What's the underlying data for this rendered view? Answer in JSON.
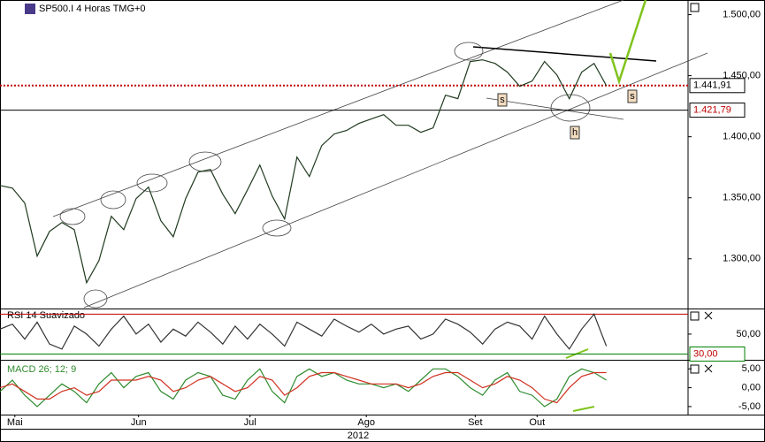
{
  "chart_data": [
    {
      "type": "line",
      "title": "SP500.I 4 Horas TMG+0",
      "color": "#1f3a1f",
      "values": [
        1360.1,
        1357.9,
        1345.6,
        1302.2,
        1322.4,
        1329.7,
        1323.9,
        1280.4,
        1298.5,
        1334.8,
        1323.9,
        1349.3,
        1358.7,
        1331.2,
        1318.1,
        1349.3,
        1371.0,
        1373.2,
        1352.9,
        1337.0,
        1356.5,
        1376.8,
        1351.4,
        1332.6,
        1383.3,
        1367.4,
        1392.7,
        1402.2,
        1405.1,
        1410.9,
        1414.5,
        1418.1,
        1409.4,
        1409.4,
        1403.6,
        1407.2,
        1434.0,
        1431.2,
        1461.6,
        1463.0,
        1460.1,
        1452.9,
        1441.3,
        1445.6,
        1461.6,
        1450.7,
        1431.2,
        1452.9,
        1460.1,
        1441.91
      ],
      "xlim": [
        0,
        55.6
      ],
      "ylim": [
        1260,
        1512
      ],
      "yticks": [
        {
          "value": 1300,
          "label": "1.300,00"
        },
        {
          "value": 1350,
          "label": "1.350,00"
        },
        {
          "value": 1400,
          "label": "1.400,00"
        },
        {
          "value": 1450,
          "label": "1.450,00"
        },
        {
          "value": 1500,
          "label": "1.500,00"
        }
      ],
      "xticks": [
        {
          "value": 1.2,
          "label": "Mai"
        },
        {
          "value": 11.2,
          "label": "Jun"
        },
        {
          "value": 20.2,
          "label": "Jul"
        },
        {
          "value": 29.6,
          "label": "Ago"
        },
        {
          "value": 38.4,
          "label": "Set"
        },
        {
          "value": 43.4,
          "label": "Out"
        }
      ],
      "xlabel": "2012",
      "hlines": [
        {
          "value": 1441.91,
          "label": "1.441,91",
          "color": "#c00000",
          "style": "dotted"
        },
        {
          "value": 1421.79,
          "label": "1.421,79",
          "color": "#000000",
          "style": "solid"
        }
      ],
      "annotations": [
        "s",
        "h",
        "s"
      ]
    },
    {
      "type": "line",
      "title": "RSI 14 Suavizado",
      "color": "#333333",
      "values": [
        55,
        60,
        45,
        62,
        40,
        35,
        58,
        50,
        38,
        55,
        68,
        50,
        60,
        42,
        55,
        48,
        62,
        52,
        40,
        58,
        45,
        60,
        50,
        38,
        62,
        55,
        48,
        65,
        58,
        52,
        60,
        50,
        55,
        58,
        45,
        50,
        65,
        60,
        52,
        40,
        55,
        62,
        58,
        45,
        68,
        50,
        35,
        55,
        70,
        38
      ],
      "ylim": [
        26,
        73
      ],
      "yticks": [
        {
          "value": 50,
          "label": "50,00"
        }
      ],
      "levels": [
        {
          "value": 70,
          "color": "#c00000"
        },
        {
          "value": 30,
          "label": "30,00",
          "color": "#008000"
        }
      ]
    },
    {
      "type": "line",
      "title": "MACD 26; 12; 9",
      "series": [
        {
          "color": "#2e8b2e",
          "values": [
            -1,
            2,
            -2,
            -5,
            -2,
            1,
            -1,
            -4,
            1,
            4,
            0,
            3,
            4,
            -1,
            -3,
            2,
            4,
            3,
            -2,
            -3,
            2,
            5,
            -1,
            -4,
            3,
            5,
            3,
            4,
            2,
            1,
            1,
            0,
            1,
            -1,
            2,
            5,
            5,
            3,
            0,
            -2,
            2,
            4,
            -1,
            -2,
            -5,
            -3,
            3,
            5,
            4,
            2
          ]
        },
        {
          "color": "#d03020",
          "values": [
            0,
            1,
            -1,
            -3,
            -3,
            -1,
            0,
            -2,
            -1,
            2,
            2,
            2,
            3,
            2,
            -1,
            0,
            2,
            3,
            1,
            -1,
            0,
            3,
            2,
            -2,
            0,
            3,
            4,
            4,
            3,
            2,
            1,
            1,
            1,
            0,
            1,
            3,
            4,
            4,
            2,
            0,
            1,
            3,
            2,
            0,
            -3,
            -4,
            0,
            3,
            4,
            4
          ]
        }
      ],
      "ylim": [
        -6.9,
        6.7
      ],
      "yticks": [
        {
          "value": -5,
          "label": "-5,00"
        },
        {
          "value": 0,
          "label": "0,00"
        },
        {
          "value": 5,
          "label": "5,00"
        }
      ]
    }
  ]
}
